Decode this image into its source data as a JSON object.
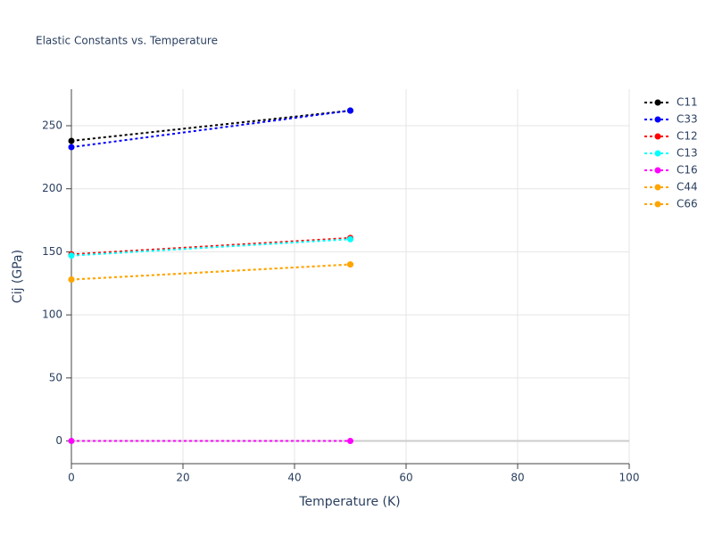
{
  "chart_data": {
    "type": "line",
    "title": "Elastic Constants vs. Temperature",
    "x_label": "Temperature (K)",
    "y_label": "Cij (GPa)",
    "x": [
      0,
      50
    ],
    "series": [
      {
        "name": "C11",
        "color": "#000000",
        "values": [
          238,
          262
        ]
      },
      {
        "name": "C33",
        "color": "#0000ff",
        "values": [
          233,
          262
        ]
      },
      {
        "name": "C12",
        "color": "#ff0000",
        "values": [
          148,
          161
        ]
      },
      {
        "name": "C13",
        "color": "#00ffff",
        "values": [
          147,
          160
        ]
      },
      {
        "name": "C16",
        "color": "#ff00ff",
        "values": [
          0,
          0
        ]
      },
      {
        "name": "C44",
        "color": "#ffa500",
        "values": [
          128,
          140
        ]
      },
      {
        "name": "C66",
        "color": "#ffa500",
        "values": [
          128,
          140
        ]
      }
    ],
    "xlim": [
      0,
      100
    ],
    "xticks": [
      0,
      20,
      40,
      60,
      80,
      100
    ],
    "ylim": [
      -18,
      279
    ],
    "yticks": [
      0,
      50,
      100,
      150,
      200,
      250
    ],
    "grid": true,
    "line_style": "dot",
    "legend": "right"
  }
}
